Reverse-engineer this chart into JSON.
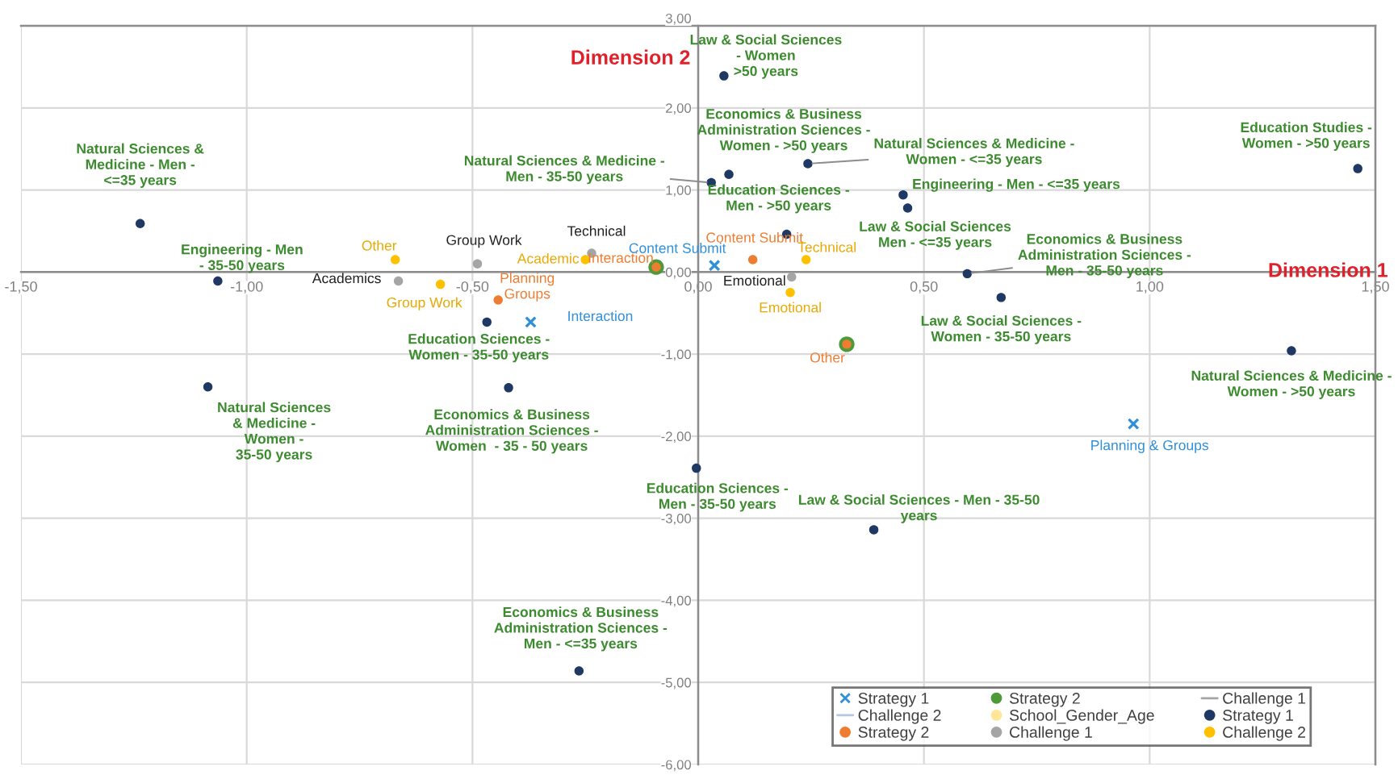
{
  "chart_data": {
    "type": "scatter",
    "xlabel": "Dimension 1",
    "ylabel": "Dimension 2",
    "xlim": [
      -1.5,
      1.5
    ],
    "ylim": [
      -6,
      3
    ],
    "xticks": [
      {
        "value": -1.5,
        "label": "-1,50"
      },
      {
        "value": -1.0,
        "label": "-1,00"
      },
      {
        "value": -0.5,
        "label": "-0,50"
      },
      {
        "value": 0.0,
        "label": "0,00"
      },
      {
        "value": 0.5,
        "label": "0,50"
      },
      {
        "value": 1.0,
        "label": "1,00"
      },
      {
        "value": 1.5,
        "label": "1,50"
      }
    ],
    "yticks": [
      {
        "value": -6,
        "label": "-6,00"
      },
      {
        "value": -5,
        "label": "-5,00"
      },
      {
        "value": -4,
        "label": "-4,00"
      },
      {
        "value": -3,
        "label": "-3,00"
      },
      {
        "value": -2,
        "label": "-2,00"
      },
      {
        "value": -1,
        "label": "-1,00"
      },
      {
        "value": 0,
        "label": "0,00"
      },
      {
        "value": 1,
        "label": "1,00"
      },
      {
        "value": 2,
        "label": "2,00"
      },
      {
        "value": 3,
        "label": "3,00"
      }
    ],
    "grid": true,
    "legend": "bottom right",
    "series": [
      {
        "name": "Strategy 1",
        "marker": "cross",
        "color": "#2f8fd8",
        "x": [
          0.036,
          -0.371,
          0.964
        ],
        "values": [
          0.08,
          -0.61,
          -1.85
        ]
      },
      {
        "name": "Strategy 2",
        "marker": "circle",
        "color": "#4e9a3a",
        "x": [
          -0.093,
          0.329
        ],
        "values": [
          0.06,
          -0.88
        ]
      },
      {
        "name": "Challenge 1",
        "type": "line",
        "line_style": "solid",
        "color": "#a5a5a5"
      },
      {
        "name": "Challenge 2",
        "type": "line",
        "line_style": "solid",
        "color": "#b4c7e7"
      },
      {
        "name": "School_Gender_Age",
        "marker": "circle",
        "color": "#ffe699"
      },
      {
        "name": "Strategy 1",
        "marker": "circle",
        "color": "#1f3864",
        "x": [
          -1.236,
          -1.064,
          -1.086,
          -0.468,
          -0.42,
          -0.264,
          -0.004,
          0.389,
          0.057,
          0.068,
          0.029,
          0.196,
          0.243,
          0.454,
          0.464,
          0.596,
          0.671,
          1.461,
          1.314
        ],
        "values": [
          0.59,
          -0.11,
          -1.4,
          -0.61,
          -1.41,
          -4.86,
          -2.39,
          -3.14,
          2.39,
          1.19,
          1.09,
          0.46,
          1.32,
          0.94,
          0.78,
          -0.02,
          -0.31,
          1.26,
          -0.96
        ]
      },
      {
        "name": "Strategy 2",
        "marker": "circle",
        "color": "#ed7d31",
        "x": [
          -0.443,
          -0.093,
          0.121,
          0.329
        ],
        "values": [
          -0.34,
          0.06,
          0.15,
          -0.88
        ]
      },
      {
        "name": "Challenge 1",
        "marker": "circle",
        "color": "#a5a5a5",
        "x": [
          -0.664,
          -0.489,
          -0.236,
          0.207
        ],
        "values": [
          -0.11,
          0.1,
          0.23,
          -0.06
        ]
      },
      {
        "name": "Challenge 2",
        "marker": "circle",
        "color": "#ffc000",
        "x": [
          -0.671,
          -0.571,
          -0.25,
          0.239,
          0.204
        ],
        "values": [
          0.15,
          -0.15,
          0.15,
          0.15,
          -0.25
        ]
      }
    ],
    "annotations": [
      {
        "text": "Natural Sciences &\nMedicine - Men -\n<=35 years",
        "x": -1.236,
        "y": 0.59
      },
      {
        "text": "Engineering - Men\n- 35-50 years",
        "x": -1.064,
        "y": -0.11
      },
      {
        "text": "Natural Sciences\n& Medicine -\nWomen -\n35-50 years",
        "x": -1.086,
        "y": -1.4
      },
      {
        "text": "Education Sciences -\nWomen - 35-50 years",
        "x": -0.468,
        "y": -0.61
      },
      {
        "text": "Economics & Business\nAdministration Sciences -\nWomen  - 35 - 50 years",
        "x": -0.42,
        "y": -1.41
      },
      {
        "text": "Economics & Business\nAdministration Sciences -\nMen - <=35 years",
        "x": -0.264,
        "y": -4.86
      },
      {
        "text": "Education Sciences -\nMen - 35-50 years",
        "x": -0.004,
        "y": -2.39
      },
      {
        "text": "Law & Social Sciences - Men - 35-50\nyears",
        "x": 0.389,
        "y": -3.14
      },
      {
        "text": "Law & Social Sciences\n- Women\n>50 years",
        "x": 0.057,
        "y": 2.39
      },
      {
        "text": "Economics & Business\nAdministration Sciences -\nWomen - >50 years",
        "x": 0.068,
        "y": 1.19
      },
      {
        "text": "Natural Sciences & Medicine -\nMen - 35-50 years",
        "x": 0.029,
        "y": 1.09
      },
      {
        "text": "Education Sciences -\nMen - >50 years",
        "x": 0.196,
        "y": 0.46
      },
      {
        "text": "Natural Sciences & Medicine -\nWomen - <=35 years",
        "x": 0.243,
        "y": 1.32
      },
      {
        "text": "Engineering - Men - <=35 years",
        "x": 0.454,
        "y": 0.94
      },
      {
        "text": "Law & Social Sciences\nMen - <=35 years",
        "x": 0.464,
        "y": 0.78
      },
      {
        "text": "Economics & Business\nAdministration Sciences -\nMen - 35-50 years",
        "x": 0.596,
        "y": -0.02
      },
      {
        "text": "Law & Social Sciences -\nWomen - 35-50 years",
        "x": 0.671,
        "y": -0.31
      },
      {
        "text": "Education Studies -\nWomen - >50 years",
        "x": 1.461,
        "y": 1.26
      },
      {
        "text": "Natural Sciences & Medicine -\nWomen - >50 years",
        "x": 1.314,
        "y": -0.96
      },
      {
        "text": "Content Submit",
        "x": 0.036,
        "y": 0.08
      },
      {
        "text": "Interaction",
        "x": -0.371,
        "y": -0.61
      },
      {
        "text": "Planning & Groups",
        "x": 0.964,
        "y": -1.85
      },
      {
        "text": "Planning\nGroups",
        "x": -0.443,
        "y": -0.34
      },
      {
        "text": "Interaction",
        "x": -0.093,
        "y": 0.06
      },
      {
        "text": "Content Submit",
        "x": 0.121,
        "y": 0.15
      },
      {
        "text": "Other",
        "x": 0.329,
        "y": -0.88
      },
      {
        "text": "Academics",
        "x": -0.664,
        "y": -0.11
      },
      {
        "text": "Group Work",
        "x": -0.489,
        "y": 0.1
      },
      {
        "text": "Technical",
        "x": -0.236,
        "y": 0.23
      },
      {
        "text": "Emotional",
        "x": 0.207,
        "y": -0.06
      },
      {
        "text": "Other",
        "x": -0.671,
        "y": 0.15
      },
      {
        "text": "Group Work",
        "x": -0.571,
        "y": -0.15
      },
      {
        "text": "Academic",
        "x": -0.25,
        "y": 0.15
      },
      {
        "text": "Technical",
        "x": 0.239,
        "y": 0.15
      },
      {
        "text": "Emotional",
        "x": 0.204,
        "y": -0.25
      }
    ]
  }
}
